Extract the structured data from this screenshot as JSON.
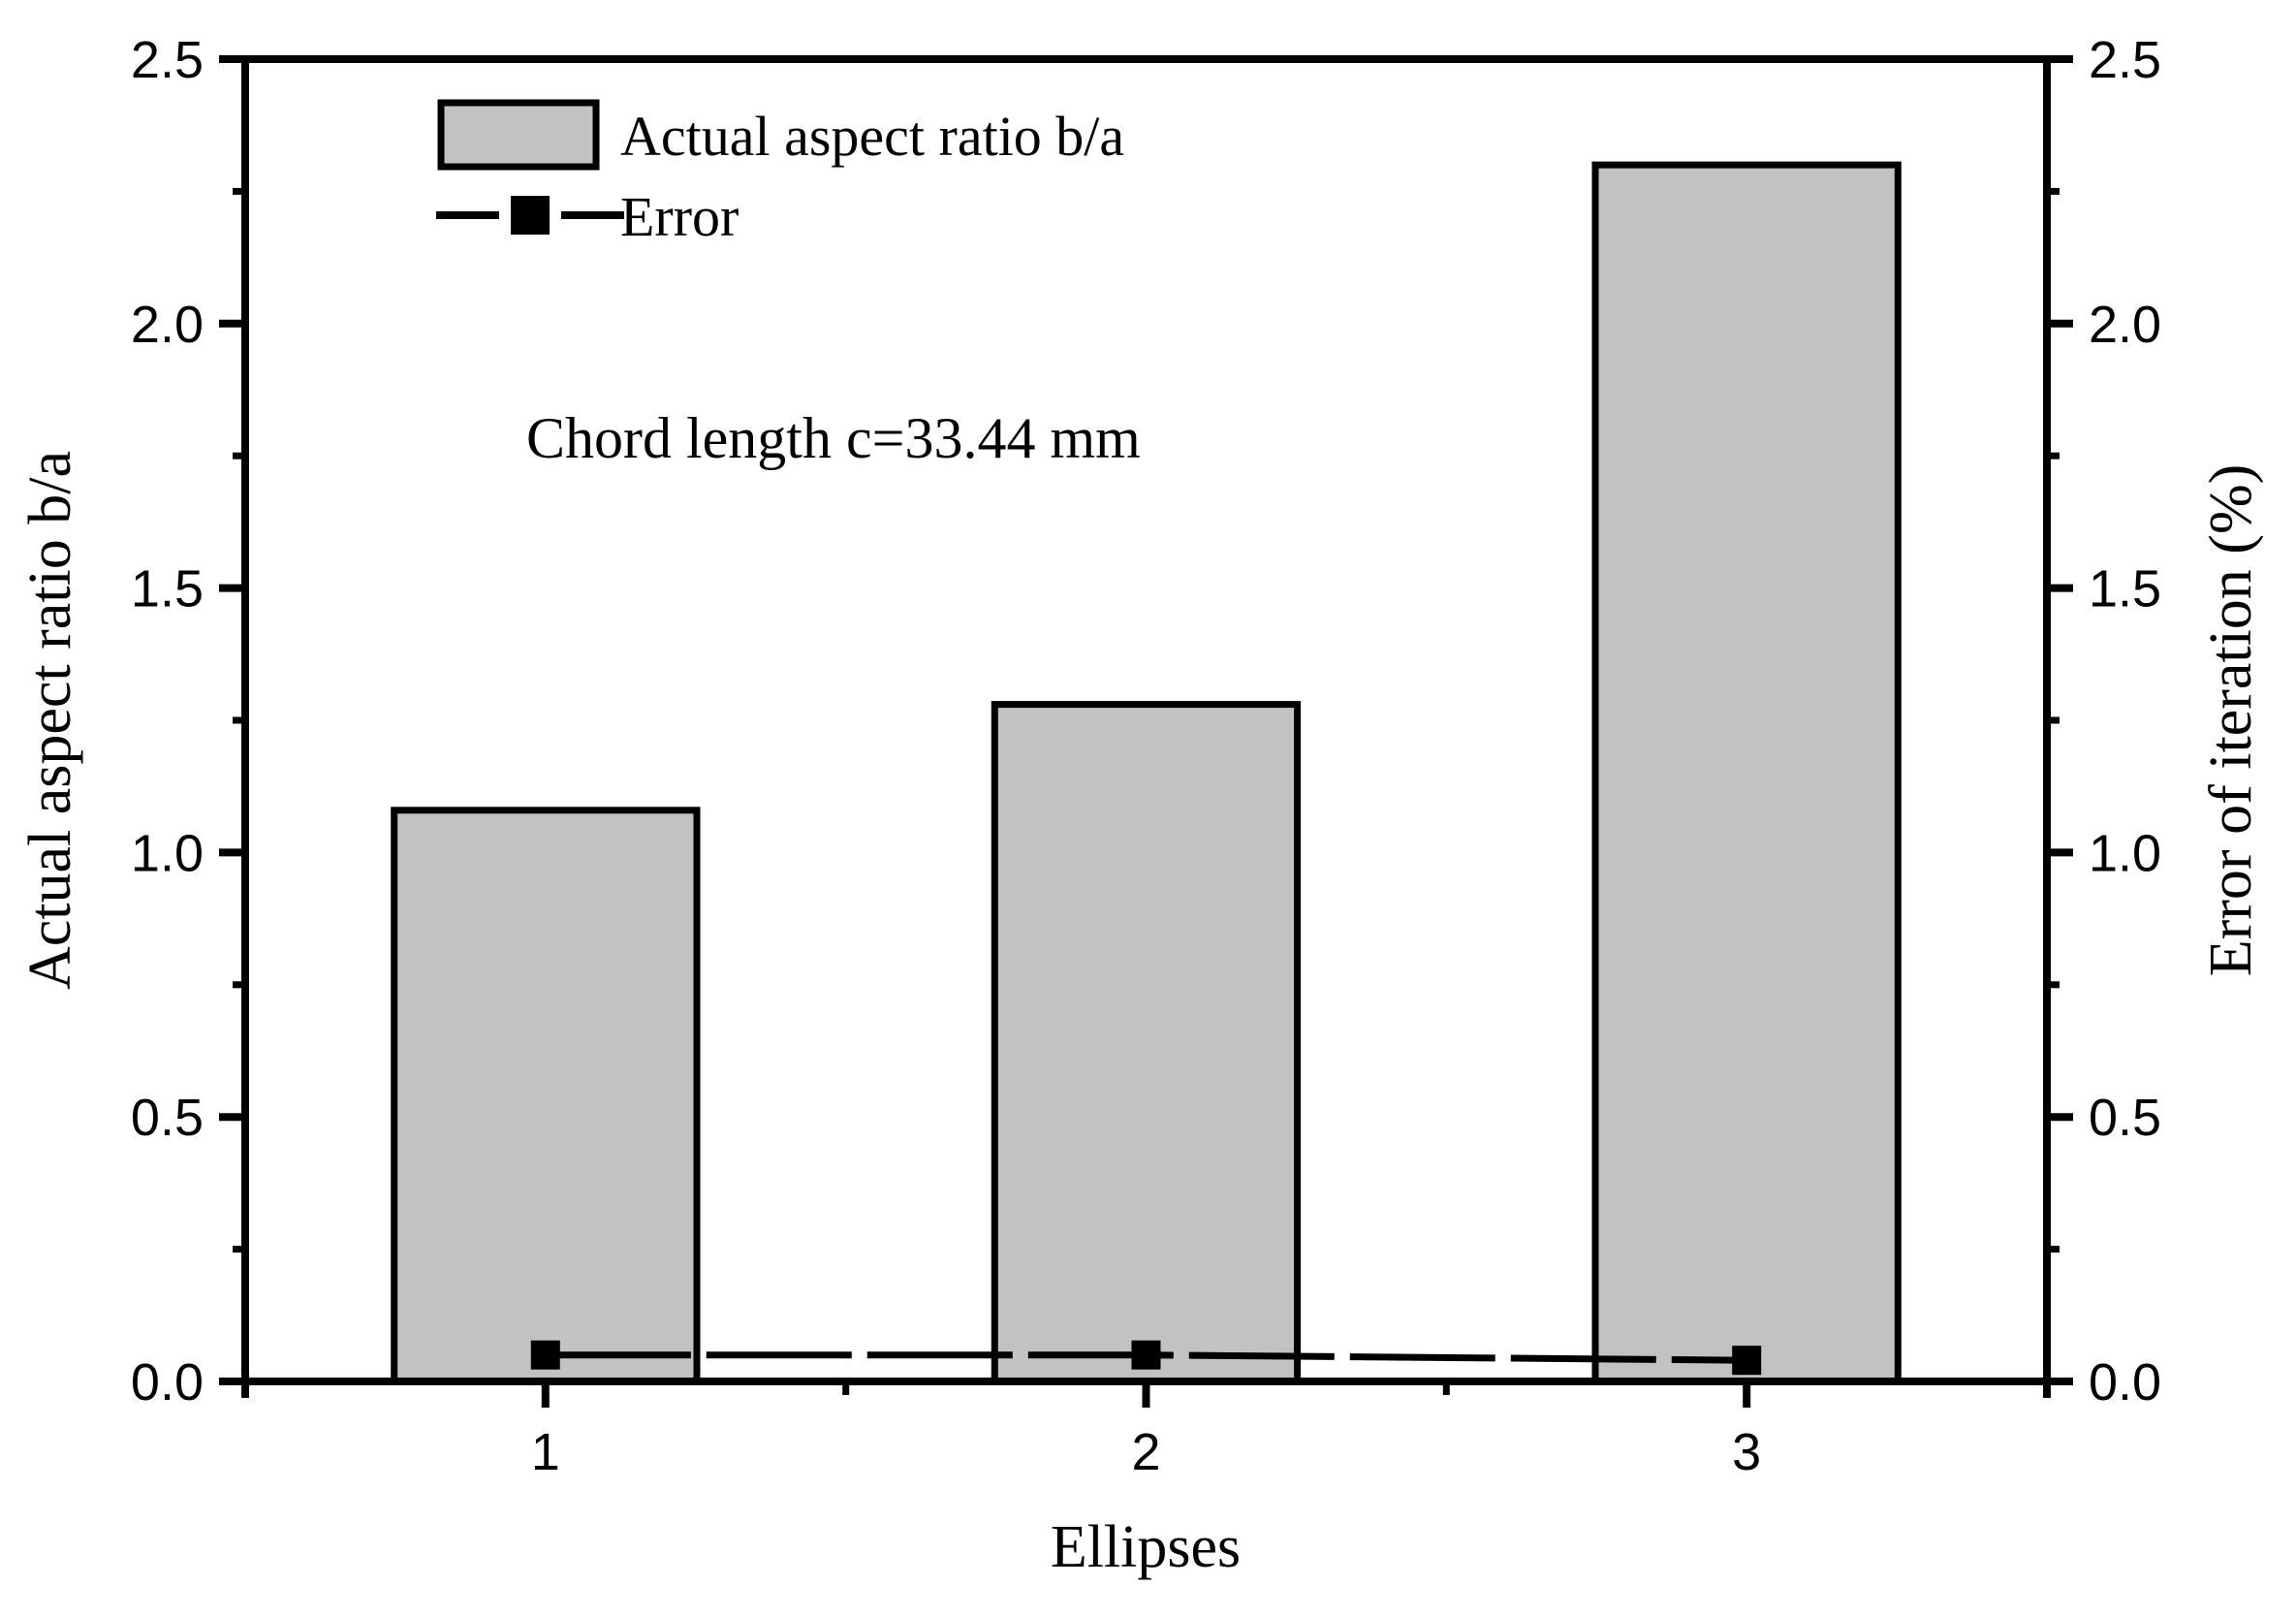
{
  "chart_data": {
    "type": "bar",
    "categories": [
      "1",
      "2",
      "3"
    ],
    "series": [
      {
        "name": "Actual aspect ratio b/a",
        "type": "bar",
        "axis": "left",
        "color": "#c2c2c2",
        "border_color": "#000000",
        "values": [
          1.08,
          1.28,
          2.3
        ]
      },
      {
        "name": "Error",
        "type": "line",
        "axis": "right",
        "color": "#000000",
        "marker": "filled-square",
        "line_style": "long-dash",
        "values": [
          0.05,
          0.05,
          0.04
        ]
      }
    ],
    "x_axis": {
      "label": "Ellipses",
      "tick_labels": [
        "1",
        "2",
        "3"
      ]
    },
    "left_axis": {
      "label": "Actual aspect ratio b/a",
      "min": 0.0,
      "max": 2.5,
      "major_step": 0.5,
      "minor_step": 0.25,
      "tick_labels": [
        "0.0",
        "0.5",
        "1.0",
        "1.5",
        "2.0",
        "2.5"
      ]
    },
    "right_axis": {
      "label": "Error of iteration (%)",
      "min": 0.0,
      "max": 2.5,
      "major_step": 0.5,
      "minor_step": 0.25,
      "tick_labels": [
        "0.0",
        "0.5",
        "1.0",
        "1.5",
        "2.0",
        "2.5"
      ]
    },
    "annotation": "Chord length c=33.44 mm",
    "legend": {
      "position": "top-left-inside",
      "entries": [
        {
          "label": "Actual aspect ratio b/a",
          "swatch": "gray-filled-bar"
        },
        {
          "label": "Error",
          "swatch": "dash-square-dash"
        }
      ]
    },
    "grid": false,
    "background": "#ffffff"
  }
}
